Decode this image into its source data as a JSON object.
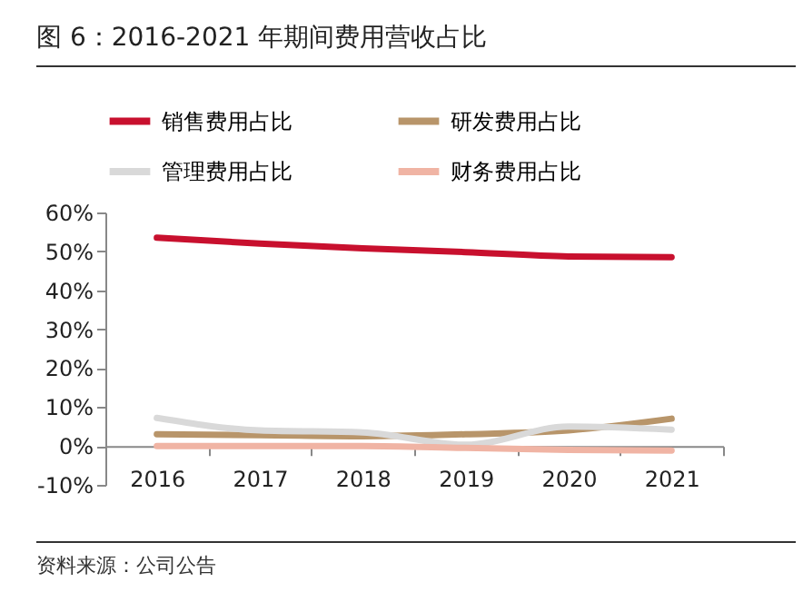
{
  "chart_data": {
    "type": "line",
    "title": "图 6：2016-2021 年期间费用营收占比",
    "annotations": [
      "资料来源：公司公告"
    ],
    "categories": [
      "2016",
      "2017",
      "2018",
      "2019",
      "2020",
      "2021"
    ],
    "series": [
      {
        "name": "销售费用占比",
        "color": "#c8102e",
        "values": [
          53.5,
          52,
          50.8,
          49.8,
          48.7,
          48.5
        ]
      },
      {
        "name": "研发费用占比",
        "color": "#b8956a",
        "values": [
          3,
          2.8,
          2.5,
          3,
          4,
          7
        ]
      },
      {
        "name": "管理费用占比",
        "color": "#d9d9d9",
        "values": [
          7.2,
          4,
          3.5,
          0.3,
          5,
          4.2
        ]
      },
      {
        "name": "财务费用占比",
        "color": "#f0b4a4",
        "values": [
          0,
          0,
          0,
          -0.5,
          -1,
          -1.2
        ]
      }
    ],
    "ylim": [
      -10,
      60
    ],
    "yticks": [
      {
        "value": -10,
        "label": "-10%"
      },
      {
        "value": 0,
        "label": "0%"
      },
      {
        "value": 10,
        "label": "10%"
      },
      {
        "value": 20,
        "label": "20%"
      },
      {
        "value": 30,
        "label": "30%"
      },
      {
        "value": 40,
        "label": "40%"
      },
      {
        "value": 50,
        "label": "50%"
      },
      {
        "value": 60,
        "label": "60%"
      }
    ],
    "grid": false,
    "legend": "top",
    "marker": "none",
    "line_style": "solid"
  }
}
